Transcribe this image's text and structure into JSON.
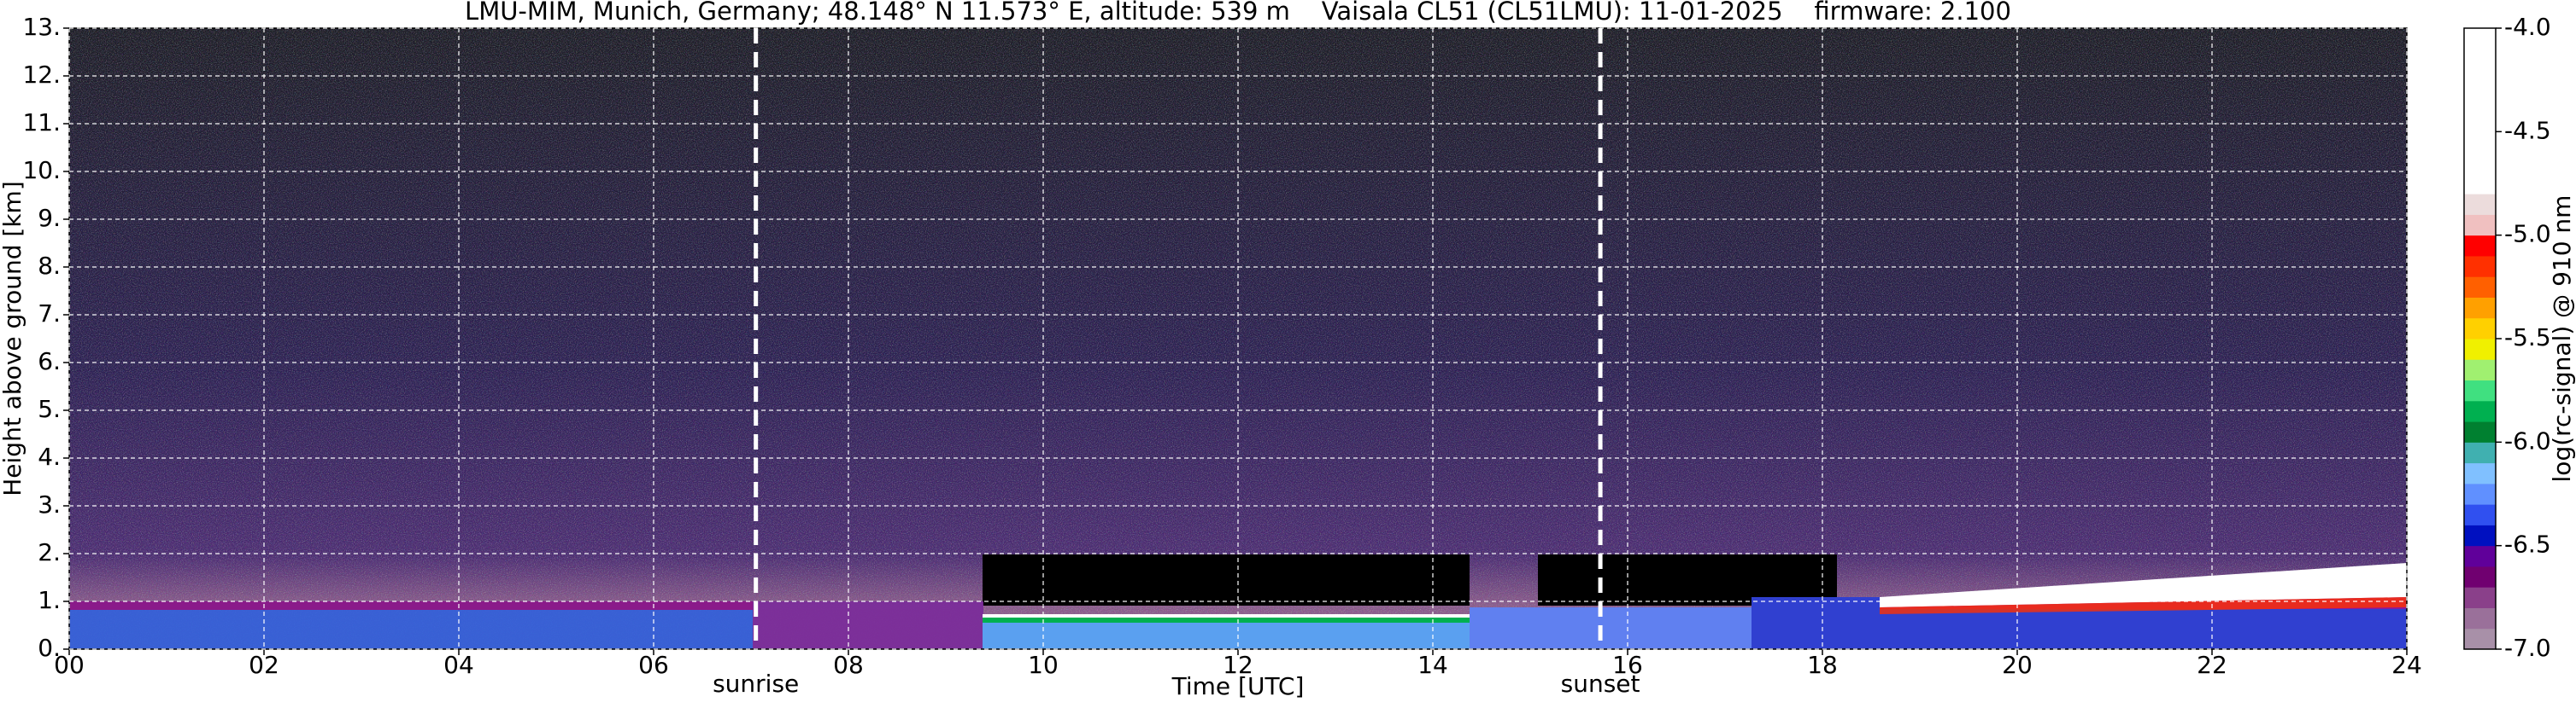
{
  "chart_data": {
    "type": "heatmap",
    "title": "LMU-MIM, Munich, Germany; 48.148° N 11.573° E, altitude: 539 m    Vaisala CL51 (CL51LMU): 11-01-2025    firmware: 2.100",
    "x_label": "Time [UTC]",
    "y_label": "Height above ground [km]",
    "xlim": [
      0,
      24
    ],
    "xticks": [
      {
        "value": 0,
        "label": "00"
      },
      {
        "value": 2,
        "label": "02"
      },
      {
        "value": 4,
        "label": "04"
      },
      {
        "value": 6,
        "label": "06"
      },
      {
        "value": 8,
        "label": "08"
      },
      {
        "value": 10,
        "label": "10"
      },
      {
        "value": 12,
        "label": "12"
      },
      {
        "value": 14,
        "label": "14"
      },
      {
        "value": 16,
        "label": "16"
      },
      {
        "value": 18,
        "label": "18"
      },
      {
        "value": 20,
        "label": "20"
      },
      {
        "value": 22,
        "label": "22"
      },
      {
        "value": 24,
        "label": "24"
      }
    ],
    "ylim": [
      0,
      13
    ],
    "yticks": [
      {
        "value": 0,
        "label": "0."
      },
      {
        "value": 1,
        "label": "1."
      },
      {
        "value": 2,
        "label": "2."
      },
      {
        "value": 3,
        "label": "3."
      },
      {
        "value": 4,
        "label": "4."
      },
      {
        "value": 5,
        "label": "5."
      },
      {
        "value": 6,
        "label": "6."
      },
      {
        "value": 7,
        "label": "7."
      },
      {
        "value": 8,
        "label": "8."
      },
      {
        "value": 9,
        "label": "9."
      },
      {
        "value": 10,
        "label": "10."
      },
      {
        "value": 11,
        "label": "11."
      },
      {
        "value": 12,
        "label": "12."
      },
      {
        "value": 13,
        "label": "13."
      }
    ],
    "grid": true,
    "annotations": [
      {
        "label": "sunrise",
        "x": 7.05
      },
      {
        "label": "sunset",
        "x": 15.72
      }
    ],
    "colorbar": {
      "label": "log(rc-signal) @ 910 nm",
      "lim": [
        -7,
        -4
      ],
      "ticks": [
        {
          "value": -4,
          "label": "-4.0"
        },
        {
          "value": -4.5,
          "label": "-4.5"
        },
        {
          "value": -5,
          "label": "-5.0"
        },
        {
          "value": -5.5,
          "label": "-5.5"
        },
        {
          "value": -6,
          "label": "-6.0"
        },
        {
          "value": -6.5,
          "label": "-6.5"
        },
        {
          "value": -7,
          "label": "-7.0"
        }
      ],
      "colors": [
        "#a890a8",
        "#9a709a",
        "#8a408a",
        "#700070",
        "#60009a",
        "#0010c0",
        "#3050f0",
        "#6090ff",
        "#80c0ff",
        "#40b0b0",
        "#008030",
        "#00b050",
        "#40e080",
        "#a0f070",
        "#f0f000",
        "#ffd000",
        "#ffa000",
        "#ff6000",
        "#ff3000",
        "#ff0000",
        "#f0c0c0",
        "#ecdcdc",
        "#ffffff",
        "#ffffff",
        "#ffffff",
        "#ffffff",
        "#ffffff",
        "#ffffff",
        "#ffffff",
        "#ffffff"
      ]
    }
  }
}
